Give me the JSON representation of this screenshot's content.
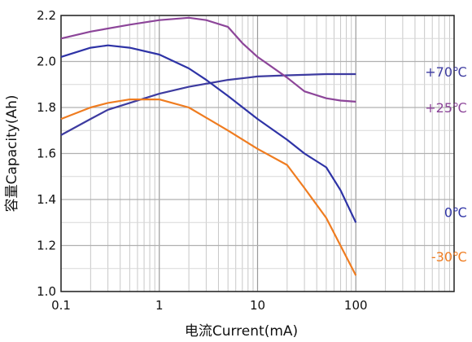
{
  "chart_data": {
    "type": "line",
    "xlabel": "电流Current(mA)",
    "ylabel": "容量Capacity(Ah)",
    "x_scale": "log",
    "xlim": [
      0.1,
      1000
    ],
    "ylim": [
      1.0,
      2.2
    ],
    "x_ticks": [
      {
        "value": 0.1,
        "label": "0.1"
      },
      {
        "value": 1,
        "label": "1"
      },
      {
        "value": 10,
        "label": "10"
      },
      {
        "value": 100,
        "label": "100"
      }
    ],
    "y_ticks": [
      {
        "value": 1.0,
        "label": "1.0"
      },
      {
        "value": 1.2,
        "label": "1.2"
      },
      {
        "value": 1.4,
        "label": "1.4"
      },
      {
        "value": 1.6,
        "label": "1.6"
      },
      {
        "value": 1.8,
        "label": "1.8"
      },
      {
        "value": 2.0,
        "label": "2.0"
      },
      {
        "value": 2.2,
        "label": "2.2"
      }
    ],
    "grid": "on (log minor)",
    "legend": "none (series labels at right end)",
    "series": [
      {
        "name": "+70℃",
        "color": "#3d3ba0",
        "x": [
          0.1,
          0.2,
          0.3,
          0.5,
          1,
          2,
          5,
          8,
          10,
          20,
          50,
          100
        ],
        "values": [
          1.68,
          1.75,
          1.79,
          1.82,
          1.86,
          1.89,
          1.92,
          1.93,
          1.935,
          1.94,
          1.945,
          1.945
        ]
      },
      {
        "name": "+25℃",
        "color": "#8c4599",
        "x": [
          0.1,
          0.2,
          0.5,
          1,
          2,
          3,
          5,
          7,
          10,
          20,
          30,
          50,
          70,
          100
        ],
        "values": [
          2.1,
          2.13,
          2.16,
          2.18,
          2.19,
          2.18,
          2.15,
          2.08,
          2.02,
          1.93,
          1.87,
          1.84,
          1.83,
          1.825
        ]
      },
      {
        "name": "0℃",
        "color": "#2e33a6",
        "x": [
          0.1,
          0.2,
          0.3,
          0.5,
          1,
          2,
          3,
          5,
          10,
          20,
          30,
          50,
          70,
          100
        ],
        "values": [
          2.02,
          2.06,
          2.07,
          2.06,
          2.03,
          1.97,
          1.92,
          1.85,
          1.75,
          1.66,
          1.6,
          1.54,
          1.44,
          1.3
        ]
      },
      {
        "name": "-30℃",
        "color": "#ef7c20",
        "x": [
          0.1,
          0.2,
          0.3,
          0.5,
          1,
          2,
          5,
          10,
          20,
          30,
          50,
          100
        ],
        "values": [
          1.75,
          1.8,
          1.82,
          1.835,
          1.835,
          1.8,
          1.7,
          1.62,
          1.55,
          1.45,
          1.32,
          1.07
        ]
      }
    ]
  }
}
